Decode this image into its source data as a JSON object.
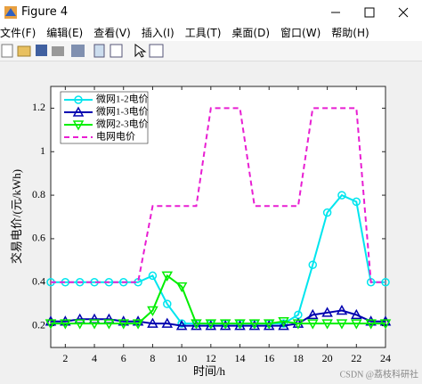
{
  "window": {
    "title": "Figure 4",
    "menu": [
      "文件(F)",
      "编辑(E)",
      "查看(V)",
      "插入(I)",
      "工具(T)",
      "桌面(D)",
      "窗口(W)",
      "帮助(H)"
    ]
  },
  "watermark": "CSDN @荔枝科研社",
  "chart_data": {
    "type": "line",
    "xlabel": "时间/h",
    "ylabel": "交易电价/(元/kWh)",
    "x": [
      1,
      2,
      3,
      4,
      5,
      6,
      7,
      8,
      9,
      10,
      11,
      12,
      13,
      14,
      15,
      16,
      17,
      18,
      19,
      20,
      21,
      22,
      23,
      24
    ],
    "xlim": [
      1,
      24
    ],
    "xticks": [
      2,
      4,
      6,
      8,
      10,
      12,
      14,
      16,
      18,
      20,
      22,
      24
    ],
    "ylim": [
      0.1,
      1.3
    ],
    "yticks": [
      0.2,
      0.4,
      0.6,
      0.8,
      1,
      1.2
    ],
    "legend": "upper left",
    "series": [
      {
        "name": "微网1-2电价",
        "color": "#00e5ee",
        "marker": "circle",
        "dash": false,
        "values": [
          0.4,
          0.4,
          0.4,
          0.4,
          0.4,
          0.4,
          0.4,
          0.43,
          0.3,
          0.21,
          0.21,
          0.21,
          0.21,
          0.21,
          0.21,
          0.21,
          0.21,
          0.25,
          0.48,
          0.72,
          0.8,
          0.77,
          0.4,
          0.4
        ]
      },
      {
        "name": "微网1-3电价",
        "color": "#0000b0",
        "marker": "triangle-up",
        "dash": false,
        "values": [
          0.22,
          0.22,
          0.23,
          0.23,
          0.23,
          0.22,
          0.22,
          0.21,
          0.21,
          0.2,
          0.2,
          0.2,
          0.2,
          0.2,
          0.2,
          0.2,
          0.2,
          0.21,
          0.25,
          0.26,
          0.27,
          0.25,
          0.22,
          0.22
        ]
      },
      {
        "name": "微网2-3电价",
        "color": "#00ee00",
        "marker": "triangle-down",
        "dash": false,
        "values": [
          0.21,
          0.21,
          0.21,
          0.21,
          0.21,
          0.21,
          0.21,
          0.27,
          0.43,
          0.38,
          0.21,
          0.21,
          0.21,
          0.21,
          0.21,
          0.21,
          0.22,
          0.21,
          0.21,
          0.21,
          0.21,
          0.21,
          0.21,
          0.21
        ]
      },
      {
        "name": "电网电价",
        "color": "#e81ed2",
        "marker": "none",
        "dash": true,
        "values": [
          0.4,
          0.4,
          0.4,
          0.4,
          0.4,
          0.4,
          0.4,
          0.75,
          0.75,
          0.75,
          0.75,
          1.2,
          1.2,
          1.2,
          0.75,
          0.75,
          0.75,
          0.75,
          1.2,
          1.2,
          1.2,
          1.2,
          0.4,
          0.4
        ]
      }
    ]
  }
}
